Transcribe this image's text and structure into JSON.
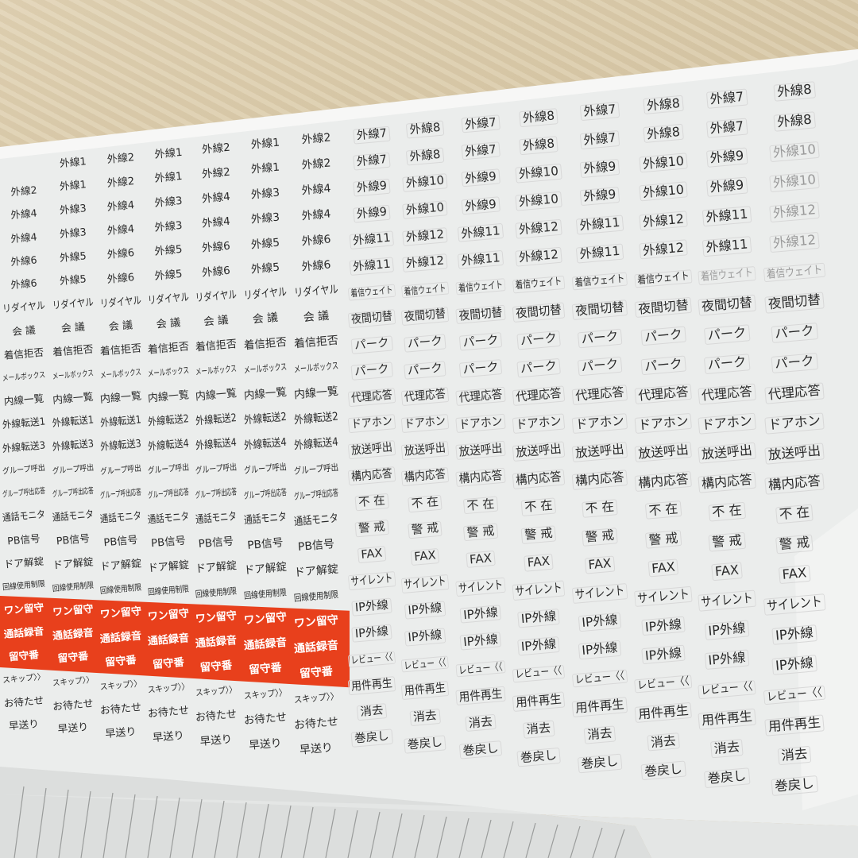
{
  "colors": {
    "sheet": "#ebedec",
    "red_band": "#e8401c",
    "wood": "#d6c6a4",
    "label_text": "#2a2a2a"
  },
  "left_block": {
    "rows": [
      [
        "",
        "外線1",
        "外線2",
        "外線1",
        "外線2",
        "外線1",
        "外線2"
      ],
      [
        "外線2",
        "外線1",
        "外線2",
        "外線1",
        "外線2",
        "外線1",
        "外線2"
      ],
      [
        "外線4",
        "外線3",
        "外線4",
        "外線3",
        "外線4",
        "外線3",
        "外線4"
      ],
      [
        "外線4",
        "外線3",
        "外線4",
        "外線3",
        "外線4",
        "外線3",
        "外線4"
      ],
      [
        "外線6",
        "外線5",
        "外線6",
        "外線5",
        "外線6",
        "外線5",
        "外線6"
      ],
      [
        "外線6",
        "外線5",
        "外線6",
        "外線5",
        "外線6",
        "外線5",
        "外線6"
      ],
      [
        "リダイヤル",
        "リダイヤル",
        "リダイヤル",
        "リダイヤル",
        "リダイヤル",
        "リダイヤル",
        "リダイヤル"
      ],
      [
        "会 議",
        "会 議",
        "会 議",
        "会 議",
        "会 議",
        "会 議",
        "会 議"
      ],
      [
        "着信拒否",
        "着信拒否",
        "着信拒否",
        "着信拒否",
        "着信拒否",
        "着信拒否",
        "着信拒否"
      ],
      [
        "メールボックス",
        "メールボックス",
        "メールボックス",
        "メールボックス",
        "メールボックス",
        "メールボックス",
        "メールボックス"
      ],
      [
        "内線一覧",
        "内線一覧",
        "内線一覧",
        "内線一覧",
        "内線一覧",
        "内線一覧",
        "内線一覧"
      ],
      [
        "外線転送1",
        "外線転送1",
        "外線転送1",
        "外線転送2",
        "外線転送2",
        "外線転送2",
        "外線転送2"
      ],
      [
        "外線転送3",
        "外線転送3",
        "外線転送3",
        "外線転送4",
        "外線転送4",
        "外線転送4",
        "外線転送4"
      ],
      [
        "グループ呼出",
        "グループ呼出",
        "グループ呼出",
        "グループ呼出",
        "グループ呼出",
        "グループ呼出",
        "グループ呼出"
      ],
      [
        "グループ呼出応答",
        "グループ呼出応答",
        "グループ呼出応答",
        "グループ呼出応答",
        "グループ呼出応答",
        "グループ呼出応答",
        "グループ呼出応答"
      ],
      [
        "通話モニタ",
        "通話モニタ",
        "通話モニタ",
        "通話モニタ",
        "通話モニタ",
        "通話モニタ",
        "通話モニタ"
      ],
      [
        "PB信号",
        "PB信号",
        "PB信号",
        "PB信号",
        "PB信号",
        "PB信号",
        "PB信号"
      ],
      [
        "ドア解錠",
        "ドア解錠",
        "ドア解錠",
        "ドア解錠",
        "ドア解錠",
        "ドア解錠",
        "ドア解錠"
      ],
      [
        "回線使用制限",
        "回線使用制限",
        "回線使用制限",
        "回線使用制限",
        "回線使用制限",
        "回線使用制限",
        "回線使用制限"
      ],
      [
        "ワン留守",
        "ワン留守",
        "ワン留守",
        "ワン留守",
        "ワン留守",
        "ワン留守",
        "ワン留守"
      ],
      [
        "通話録音",
        "通話録音",
        "通話録音",
        "通話録音",
        "通話録音",
        "通話録音",
        "通話録音"
      ],
      [
        "留守番",
        "留守番",
        "留守番",
        "留守番",
        "留守番",
        "留守番",
        "留守番"
      ],
      [
        "スキップ〉〉",
        "スキップ〉〉",
        "スキップ〉〉",
        "スキップ〉〉",
        "スキップ〉〉",
        "スキップ〉〉",
        "スキップ〉〉"
      ],
      [
        "お待たせ",
        "お待たせ",
        "お待たせ",
        "お待たせ",
        "お待たせ",
        "お待たせ",
        "お待たせ"
      ],
      [
        "早送り",
        "早送り",
        "早送り",
        "早送り",
        "早送り",
        "早送り",
        "早送り"
      ]
    ]
  },
  "right_block": {
    "rows": [
      [
        "外線7",
        "外線8",
        "外線7",
        "外線8",
        "外線7",
        "外線8",
        "外線7",
        "外線8"
      ],
      [
        "外線7",
        "外線8",
        "外線7",
        "外線8",
        "外線7",
        "外線8",
        "外線7",
        "外線8"
      ],
      [
        "外線9",
        "外線10",
        "外線9",
        "外線10",
        "外線9",
        "外線10",
        "外線9",
        "外線10"
      ],
      [
        "外線9",
        "外線10",
        "外線9",
        "外線10",
        "外線9",
        "外線10",
        "外線9",
        "外線10"
      ],
      [
        "外線11",
        "外線12",
        "外線11",
        "外線12",
        "外線11",
        "外線12",
        "外線11",
        "外線12"
      ],
      [
        "外線11",
        "外線12",
        "外線11",
        "外線12",
        "外線11",
        "外線12",
        "外線11",
        "外線12"
      ],
      [
        "着信ウェイト",
        "着信ウェイト",
        "着信ウェイト",
        "着信ウェイト",
        "着信ウェイト",
        "着信ウェイト",
        "着信ウェイト",
        "着信ウェイト"
      ],
      [
        "夜間切替",
        "夜間切替",
        "夜間切替",
        "夜間切替",
        "夜間切替",
        "夜間切替",
        "夜間切替",
        "夜間切替"
      ],
      [
        "パーク",
        "パーク",
        "パーク",
        "パーク",
        "パーク",
        "パーク",
        "パーク",
        "パーク"
      ],
      [
        "パーク",
        "パーク",
        "パーク",
        "パーク",
        "パーク",
        "パーク",
        "パーク",
        "パーク"
      ],
      [
        "代理応答",
        "代理応答",
        "代理応答",
        "代理応答",
        "代理応答",
        "代理応答",
        "代理応答",
        "代理応答"
      ],
      [
        "ドアホン",
        "ドアホン",
        "ドアホン",
        "ドアホン",
        "ドアホン",
        "ドアホン",
        "ドアホン",
        "ドアホン"
      ],
      [
        "放送呼出",
        "放送呼出",
        "放送呼出",
        "放送呼出",
        "放送呼出",
        "放送呼出",
        "放送呼出",
        "放送呼出"
      ],
      [
        "構内応答",
        "構内応答",
        "構内応答",
        "構内応答",
        "構内応答",
        "構内応答",
        "構内応答",
        "構内応答"
      ],
      [
        "不 在",
        "不 在",
        "不 在",
        "不 在",
        "不 在",
        "不 在",
        "不 在",
        "不 在"
      ],
      [
        "警 戒",
        "警 戒",
        "警 戒",
        "警 戒",
        "警 戒",
        "警 戒",
        "警 戒",
        "警 戒"
      ],
      [
        "FAX",
        "FAX",
        "FAX",
        "FAX",
        "FAX",
        "FAX",
        "FAX",
        "FAX"
      ],
      [
        "サイレント",
        "サイレント",
        "サイレント",
        "サイレント",
        "サイレント",
        "サイレント",
        "サイレント",
        "サイレント"
      ],
      [
        "IP外線",
        "IP外線",
        "IP外線",
        "IP外線",
        "IP外線",
        "IP外線",
        "IP外線",
        "IP外線"
      ],
      [
        "IP外線",
        "IP外線",
        "IP外線",
        "IP外線",
        "IP外線",
        "IP外線",
        "IP外線",
        "IP外線"
      ],
      [
        "レビュー〈〈",
        "レビュー〈〈",
        "レビュー〈〈",
        "レビュー〈〈",
        "レビュー〈〈",
        "レビュー〈〈",
        "レビュー〈〈",
        "レビュー〈〈"
      ],
      [
        "用件再生",
        "用件再生",
        "用件再生",
        "用件再生",
        "用件再生",
        "用件再生",
        "用件再生",
        "用件再生"
      ],
      [
        "消去",
        "消去",
        "消去",
        "消去",
        "消去",
        "消去",
        "消去",
        "消去"
      ],
      [
        "巻戻し",
        "巻戻し",
        "巻戻し",
        "巻戻し",
        "巻戻し",
        "巻戻し",
        "巻戻し",
        "巻戻し"
      ]
    ]
  }
}
